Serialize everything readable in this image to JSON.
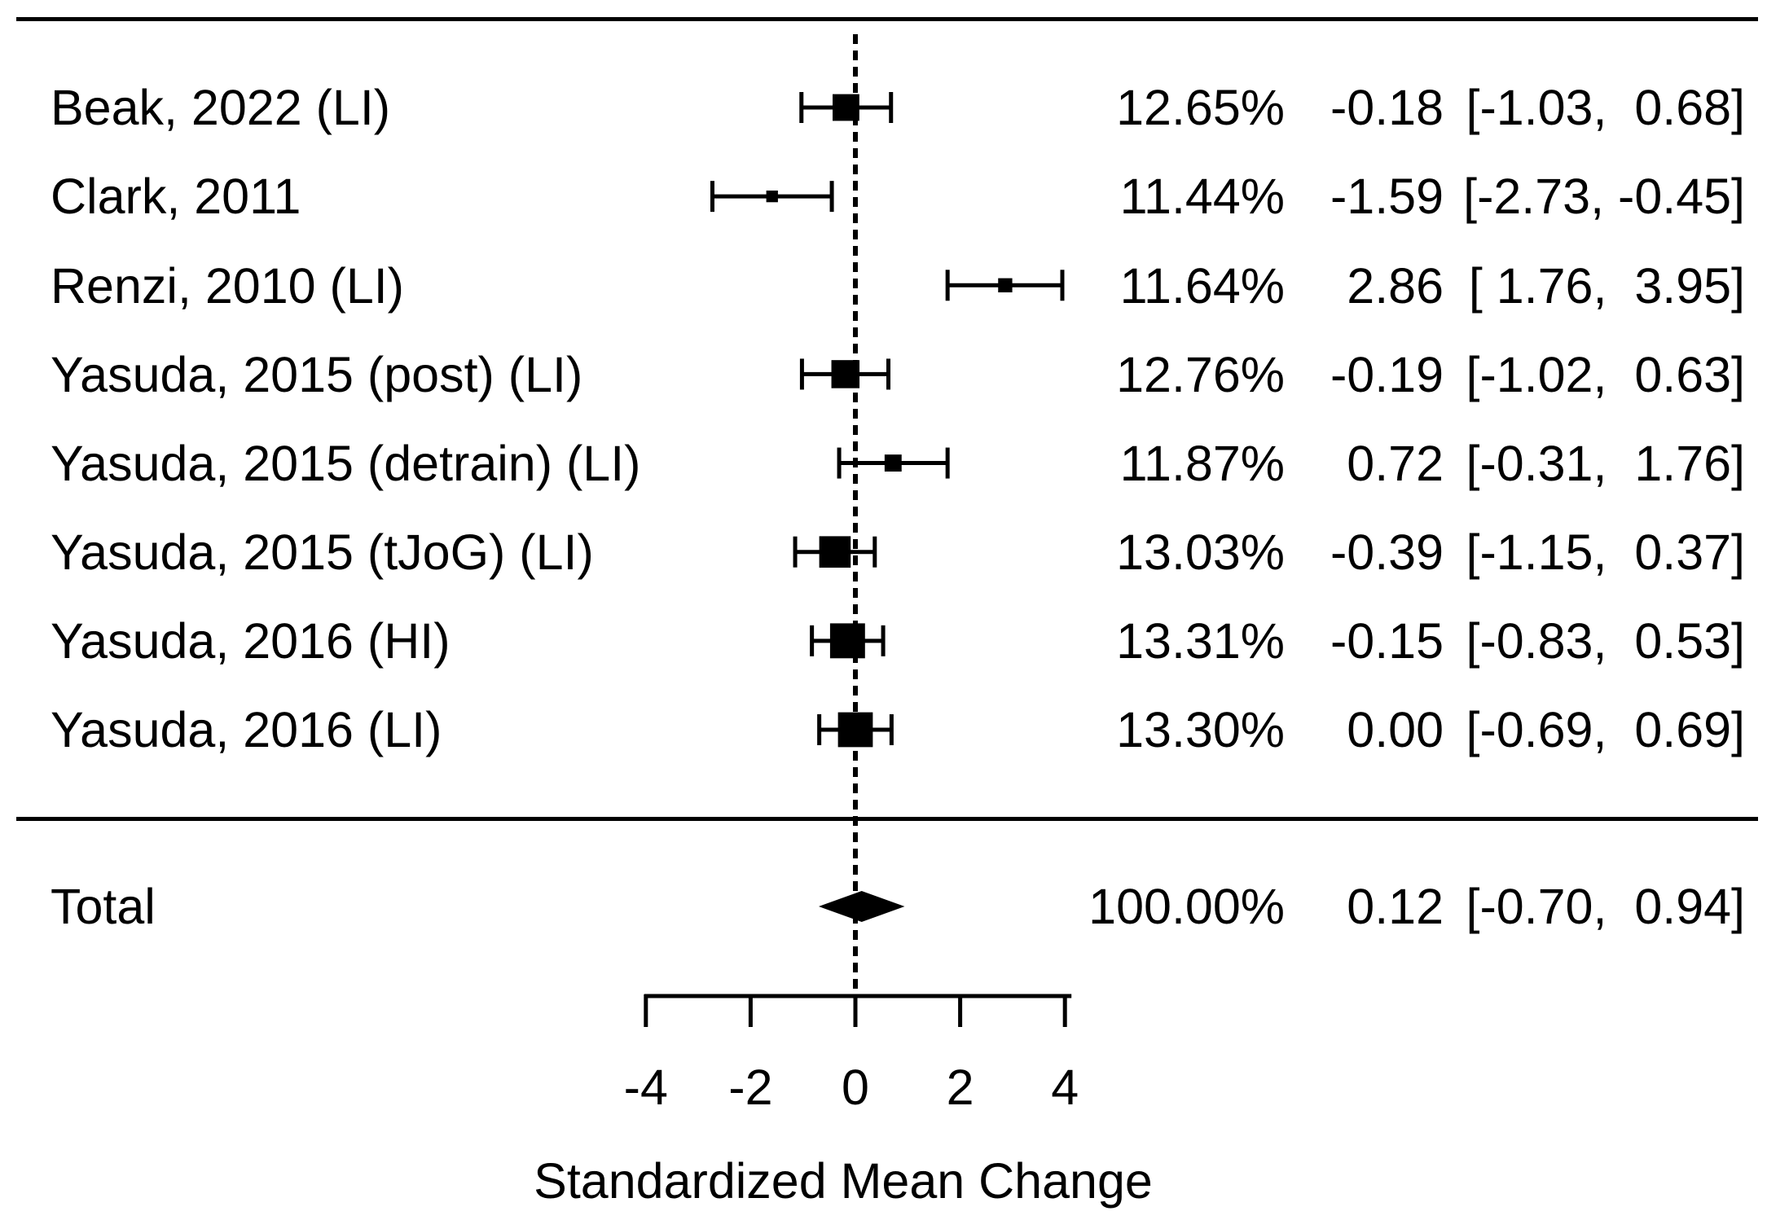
{
  "chart_data": {
    "type": "forest",
    "xlabel": "Standardized Mean Change",
    "axis": {
      "ticks": [
        -4,
        -2,
        0,
        2,
        4
      ],
      "xlim": [
        -4,
        4
      ],
      "zero_line": 0
    },
    "columns": {
      "weight": "percent",
      "annotation": "estimate [95% CI]"
    },
    "studies": [
      {
        "label": "Beak, 2022 (LI)",
        "weight_pct": 12.65,
        "weight_label": "12.65%",
        "est": -0.18,
        "lo": -1.03,
        "hi": 0.68,
        "est_label": "-0.18",
        "interval_label": "[-1.03,  0.68]"
      },
      {
        "label": "Clark, 2011",
        "weight_pct": 11.44,
        "weight_label": "11.44%",
        "est": -1.59,
        "lo": -2.73,
        "hi": -0.45,
        "est_label": "-1.59",
        "interval_label": "[-2.73, -0.45]"
      },
      {
        "label": "Renzi, 2010 (LI)",
        "weight_pct": 11.64,
        "weight_label": "11.64%",
        "est": 2.86,
        "lo": 1.76,
        "hi": 3.95,
        "est_label": "2.86",
        "interval_label": "[ 1.76,  3.95]"
      },
      {
        "label": "Yasuda, 2015 (post) (LI)",
        "weight_pct": 12.76,
        "weight_label": "12.76%",
        "est": -0.19,
        "lo": -1.02,
        "hi": 0.63,
        "est_label": "-0.19",
        "interval_label": "[-1.02,  0.63]"
      },
      {
        "label": "Yasuda, 2015 (detrain) (LI)",
        "weight_pct": 11.87,
        "weight_label": "11.87%",
        "est": 0.72,
        "lo": -0.31,
        "hi": 1.76,
        "est_label": "0.72",
        "interval_label": "[-0.31,  1.76]"
      },
      {
        "label": "Yasuda, 2015 (tJoG) (LI)",
        "weight_pct": 13.03,
        "weight_label": "13.03%",
        "est": -0.39,
        "lo": -1.15,
        "hi": 0.37,
        "est_label": "-0.39",
        "interval_label": "[-1.15,  0.37]"
      },
      {
        "label": "Yasuda, 2016 (HI)",
        "weight_pct": 13.31,
        "weight_label": "13.31%",
        "est": -0.15,
        "lo": -0.83,
        "hi": 0.53,
        "est_label": "-0.15",
        "interval_label": "[-0.83,  0.53]"
      },
      {
        "label": "Yasuda, 2016 (LI)",
        "weight_pct": 13.3,
        "weight_label": "13.30%",
        "est": 0.0,
        "lo": -0.69,
        "hi": 0.69,
        "est_label": "0.00",
        "interval_label": "[-0.69,  0.69]"
      }
    ],
    "total": {
      "label": "Total",
      "weight_pct": 100.0,
      "weight_label": "100.00%",
      "est": 0.12,
      "lo": -0.7,
      "hi": 0.94,
      "est_label": "0.12",
      "interval_label": "[-0.70,  0.94]"
    }
  }
}
